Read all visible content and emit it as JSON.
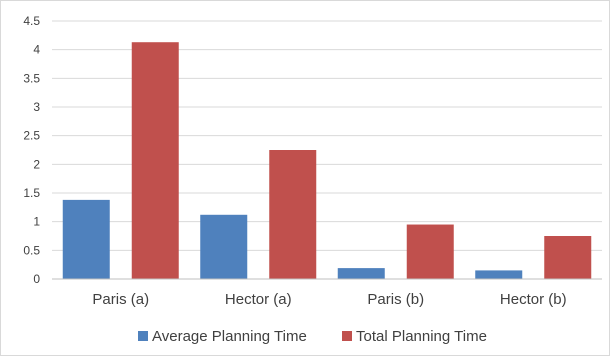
{
  "chart_data": {
    "type": "bar",
    "categories": [
      "Paris (a)",
      "Hector (a)",
      "Paris (b)",
      "Hector (b)"
    ],
    "series": [
      {
        "name": "Average Planning Time",
        "color": "#4f81bd",
        "values": [
          1.38,
          1.12,
          0.19,
          0.15
        ]
      },
      {
        "name": "Total Planning Time",
        "color": "#c0504d",
        "values": [
          4.13,
          2.25,
          0.95,
          0.75
        ]
      }
    ],
    "ylim": [
      0,
      4.5
    ],
    "yticks": [
      "0",
      "0.5",
      "1",
      "1.5",
      "2",
      "2.5",
      "3",
      "3.5",
      "4",
      "4.5"
    ],
    "ytick_values": [
      0,
      0.5,
      1,
      1.5,
      2,
      2.5,
      3,
      3.5,
      4,
      4.5
    ],
    "grid": true,
    "legend": "bottom",
    "title": "",
    "xlabel": "",
    "ylabel": ""
  }
}
